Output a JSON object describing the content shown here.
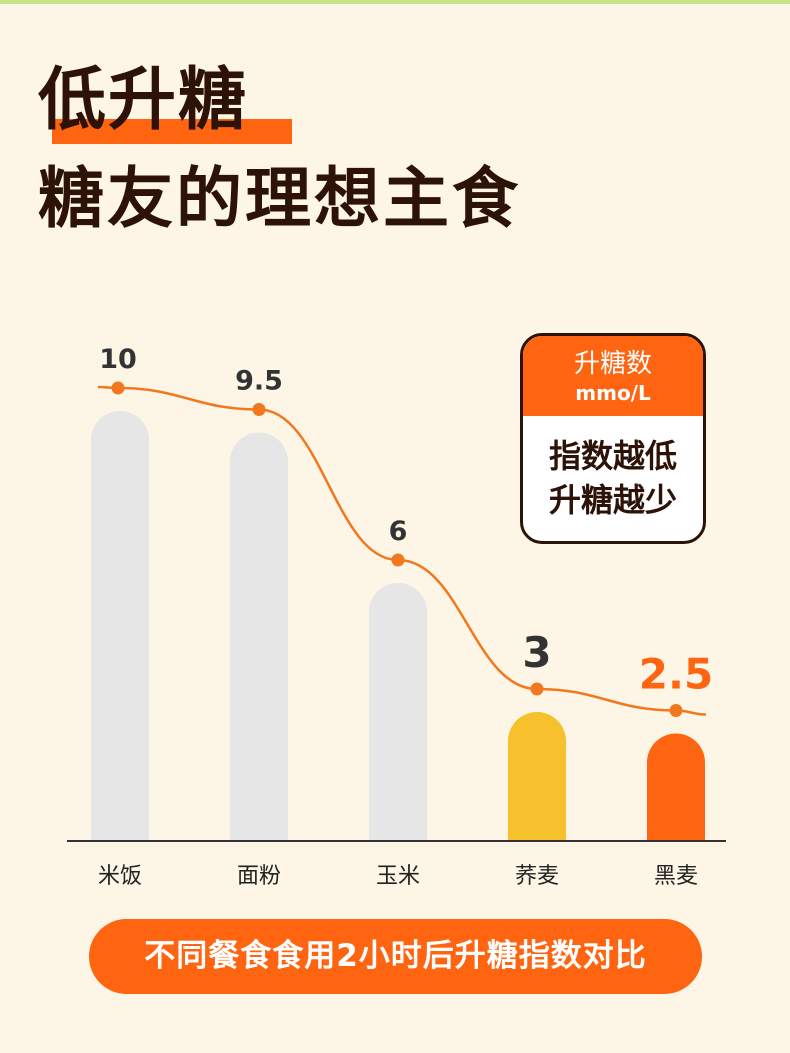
{
  "header": {
    "title_line1": "低升糖",
    "title_line2": "糖友的理想主食"
  },
  "legend": {
    "title": "升糖数",
    "unit": "mmo/L",
    "line1": "指数越低",
    "line2": "升糖越少"
  },
  "footer": {
    "caption": "不同餐食食用2小时后升糖指数对比"
  },
  "colors": {
    "background": "#fdf6e6",
    "accent": "#ff6410",
    "bar_default": "#e6e6e6",
    "bar_highlight_yellow": "#f6c12d",
    "bar_highlight_orange": "#ff6410",
    "text_dark": "#2d1207"
  },
  "chart_data": {
    "type": "bar",
    "categories": [
      "米饭",
      "面粉",
      "玉米",
      "荞麦",
      "黑麦"
    ],
    "values": [
      10,
      9.5,
      6,
      3,
      2.5
    ],
    "value_labels": [
      "10",
      "9.5",
      "6",
      "3",
      "2.5"
    ],
    "bar_colors": [
      "#e6e6e6",
      "#e6e6e6",
      "#e6e6e6",
      "#f6c12d",
      "#ff6410"
    ],
    "label_colors": [
      "#333333",
      "#333333",
      "#333333",
      "#333333",
      "#ff6410"
    ],
    "overlay": "smooth-line",
    "title": "",
    "xlabel": "",
    "ylabel": "",
    "ylim": [
      0,
      11
    ],
    "grid": false
  }
}
